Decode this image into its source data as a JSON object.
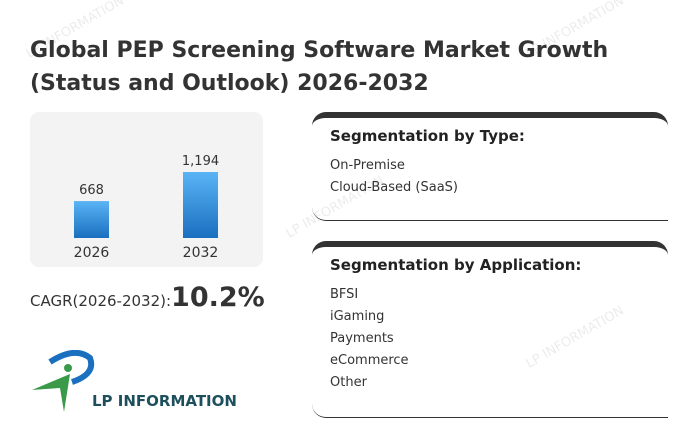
{
  "title": "Global PEP Screening Software Market Growth (Status and Outlook) 2026-2032",
  "chart_data": {
    "type": "bar",
    "categories": [
      "2026",
      "2032"
    ],
    "values": [
      668,
      1194
    ],
    "data_labels": [
      "668",
      "1,194"
    ],
    "ylim": [
      0,
      1194
    ],
    "grid": false,
    "colors": {
      "bar_top": "#5ab4f5",
      "bar_bottom": "#1a6fbf"
    }
  },
  "cagr": {
    "label": "CAGR(2026-2032):",
    "value": "10.2%"
  },
  "logo": {
    "text": "LP INFORMATION"
  },
  "watermark": "LP INFORMATION",
  "segments": [
    {
      "heading": "Segmentation by Type:",
      "items": [
        "On-Premise",
        "Cloud-Based (SaaS)"
      ]
    },
    {
      "heading": "Segmentation by Application:",
      "items": [
        "BFSI",
        "iGaming",
        "Payments",
        "eCommerce",
        "Other"
      ]
    }
  ]
}
